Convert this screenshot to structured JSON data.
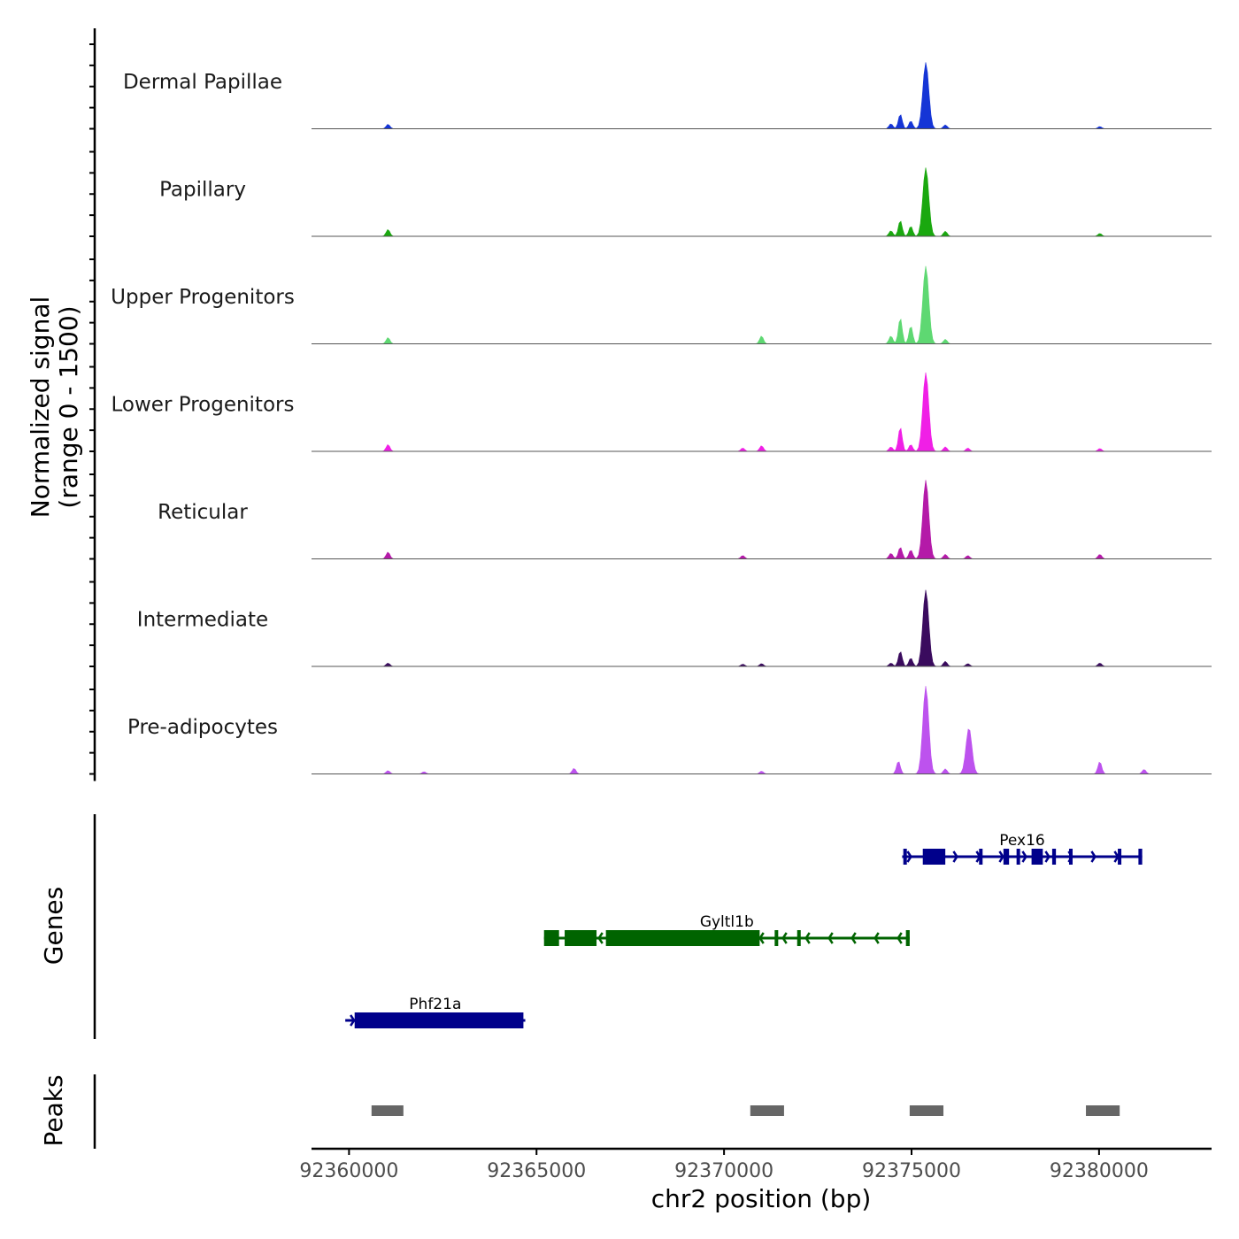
{
  "chart_data": {
    "type": "area",
    "title": "",
    "ylabel_line1": "Normalized signal",
    "ylabel_line2": "(range 0 - 1500)",
    "xlabel": "chr2 position (bp)",
    "xlim": [
      92359000,
      92383000
    ],
    "ylim": [
      0,
      1500
    ],
    "x_ticks": [
      92360000,
      92365000,
      92370000,
      92375000,
      92380000
    ],
    "x_tick_labels": [
      "92360000",
      "92365000",
      "92370000",
      "92375000",
      "92380000"
    ],
    "series": [
      {
        "name": "Dermal Papillae",
        "color": "#1535d6",
        "peaks": [
          {
            "pos": 92361040,
            "height": 80
          },
          {
            "pos": 92374450,
            "height": 90
          },
          {
            "pos": 92374700,
            "height": 260
          },
          {
            "pos": 92374980,
            "height": 140
          },
          {
            "pos": 92375380,
            "height": 1180
          },
          {
            "pos": 92375900,
            "height": 70
          },
          {
            "pos": 92380020,
            "height": 40
          }
        ]
      },
      {
        "name": "Papillary",
        "color": "#1aa80f",
        "peaks": [
          {
            "pos": 92361040,
            "height": 120
          },
          {
            "pos": 92374450,
            "height": 100
          },
          {
            "pos": 92374700,
            "height": 280
          },
          {
            "pos": 92374980,
            "height": 180
          },
          {
            "pos": 92375380,
            "height": 1220
          },
          {
            "pos": 92375900,
            "height": 90
          },
          {
            "pos": 92380020,
            "height": 50
          }
        ]
      },
      {
        "name": "Upper Progenitors",
        "color": "#5ed872",
        "peaks": [
          {
            "pos": 92361040,
            "height": 110
          },
          {
            "pos": 92371000,
            "height": 140
          },
          {
            "pos": 92374450,
            "height": 140
          },
          {
            "pos": 92374700,
            "height": 460
          },
          {
            "pos": 92374980,
            "height": 320
          },
          {
            "pos": 92375380,
            "height": 1380
          },
          {
            "pos": 92375900,
            "height": 80
          }
        ]
      },
      {
        "name": "Lower Progenitors",
        "color": "#f01fe6",
        "peaks": [
          {
            "pos": 92361040,
            "height": 120
          },
          {
            "pos": 92370500,
            "height": 60
          },
          {
            "pos": 92371000,
            "height": 100
          },
          {
            "pos": 92374450,
            "height": 80
          },
          {
            "pos": 92374700,
            "height": 430
          },
          {
            "pos": 92374980,
            "height": 120
          },
          {
            "pos": 92375380,
            "height": 1400
          },
          {
            "pos": 92375900,
            "height": 80
          },
          {
            "pos": 92376500,
            "height": 60
          },
          {
            "pos": 92380020,
            "height": 50
          }
        ]
      },
      {
        "name": "Reticular",
        "color": "#b41aa8",
        "peaks": [
          {
            "pos": 92361040,
            "height": 120
          },
          {
            "pos": 92370500,
            "height": 60
          },
          {
            "pos": 92374450,
            "height": 100
          },
          {
            "pos": 92374700,
            "height": 210
          },
          {
            "pos": 92374980,
            "height": 160
          },
          {
            "pos": 92375380,
            "height": 1400
          },
          {
            "pos": 92375900,
            "height": 80
          },
          {
            "pos": 92376500,
            "height": 60
          },
          {
            "pos": 92380020,
            "height": 80
          }
        ]
      },
      {
        "name": "Intermediate",
        "color": "#3a0b5e",
        "peaks": [
          {
            "pos": 92361040,
            "height": 60
          },
          {
            "pos": 92370500,
            "height": 40
          },
          {
            "pos": 92371000,
            "height": 50
          },
          {
            "pos": 92374450,
            "height": 60
          },
          {
            "pos": 92374700,
            "height": 270
          },
          {
            "pos": 92374980,
            "height": 150
          },
          {
            "pos": 92375380,
            "height": 1360
          },
          {
            "pos": 92375900,
            "height": 90
          },
          {
            "pos": 92376500,
            "height": 50
          },
          {
            "pos": 92380020,
            "height": 60
          }
        ]
      },
      {
        "name": "Pre-adipocytes",
        "color": "#bd52ee",
        "peaks": [
          {
            "pos": 92361040,
            "height": 60
          },
          {
            "pos": 92362000,
            "height": 40
          },
          {
            "pos": 92366000,
            "height": 100
          },
          {
            "pos": 92371000,
            "height": 50
          },
          {
            "pos": 92374650,
            "height": 230
          },
          {
            "pos": 92375380,
            "height": 1560
          },
          {
            "pos": 92375900,
            "height": 90
          },
          {
            "pos": 92376530,
            "height": 820
          },
          {
            "pos": 92380020,
            "height": 220
          },
          {
            "pos": 92381200,
            "height": 80
          }
        ]
      }
    ],
    "genes": [
      {
        "name": "Pex16",
        "color": "#00008b",
        "strand": "+",
        "start": 92374750,
        "end": 92381150,
        "exons": [
          [
            92374780,
            92374850
          ],
          [
            92375300,
            92375900
          ],
          [
            92376800,
            92376850
          ],
          [
            92377450,
            92377600
          ],
          [
            92377800,
            92377850
          ],
          [
            92378200,
            92378500
          ],
          [
            92378750,
            92378850
          ],
          [
            92379200,
            92379250
          ],
          [
            92380500,
            92380550
          ],
          [
            92381050,
            92381150
          ]
        ],
        "row": 0
      },
      {
        "name": "Gyltl1b",
        "color": "#006400",
        "strand": "-",
        "start": 92365200,
        "end": 92374950,
        "exons": [
          [
            92365200,
            92365600
          ],
          [
            92365750,
            92366600
          ],
          [
            92366850,
            92370950
          ],
          [
            92371350,
            92371400
          ],
          [
            92371950,
            92372000
          ],
          [
            92374850,
            92374950
          ]
        ],
        "row": 1
      },
      {
        "name": "Phf21a",
        "color": "#00008b",
        "strand": "+",
        "start": 92359900,
        "end": 92364700,
        "exons": [
          [
            92360150,
            92364650
          ]
        ],
        "row": 2
      }
    ],
    "peaks_track": [
      [
        92360600,
        92361450
      ],
      [
        92370700,
        92371600
      ],
      [
        92374950,
        92375850
      ],
      [
        92379650,
        92380550
      ]
    ],
    "track_labels": {
      "genes": "Genes",
      "peaks": "Peaks"
    }
  }
}
